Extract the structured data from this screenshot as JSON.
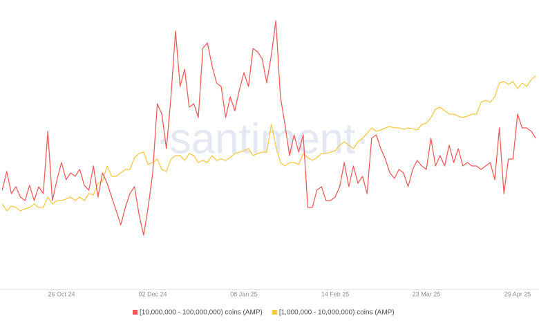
{
  "chart_data": {
    "type": "line",
    "watermark": "·santiment·",
    "categories": [
      null,
      null,
      null,
      null,
      null,
      null,
      null,
      null,
      null,
      null,
      null,
      null,
      null,
      "26 Oct 24",
      null,
      null,
      null,
      null,
      null,
      null,
      null,
      null,
      null,
      null,
      null,
      null,
      null,
      null,
      null,
      null,
      null,
      null,
      null,
      "02 Dec 24",
      null,
      null,
      null,
      null,
      null,
      null,
      null,
      null,
      null,
      null,
      null,
      null,
      null,
      null,
      null,
      null,
      null,
      null,
      null,
      "08 Jan 25",
      null,
      null,
      null,
      null,
      null,
      null,
      null,
      null,
      null,
      null,
      null,
      null,
      null,
      null,
      null,
      null,
      null,
      null,
      null,
      "14 Feb 25",
      null,
      null,
      null,
      null,
      null,
      null,
      null,
      null,
      null,
      null,
      null,
      null,
      null,
      null,
      null,
      null,
      null,
      null,
      null,
      "23 Mar 25",
      null,
      null,
      null,
      null,
      null,
      null,
      null,
      null,
      null,
      null,
      null,
      null,
      null,
      null,
      null,
      null,
      null,
      null,
      null,
      "29 Apr 25",
      null,
      null,
      null,
      null
    ],
    "series": [
      {
        "name": "[10,000,000 - 100,000,000) coins (AMP)",
        "color": "#ef5b5b",
        "values": [
          143,
          170,
          138,
          148,
          133,
          128,
          150,
          128,
          148,
          138,
          228,
          128,
          158,
          183,
          158,
          168,
          163,
          173,
          150,
          143,
          178,
          133,
          168,
          153,
          133,
          113,
          93,
          118,
          138,
          148,
          108,
          78,
          118,
          168,
          268,
          253,
          203,
          278,
          373,
          293,
          318,
          263,
          268,
          248,
          348,
          356,
          323,
          298,
          293,
          248,
          278,
          258,
          288,
          313,
          293,
          348,
          343,
          333,
          298,
          338,
          388,
          278,
          238,
          193,
          223,
          198,
          223,
          118,
          118,
          143,
          148,
          128,
          128,
          133,
          148,
          183,
          148,
          178,
          153,
          163,
          138,
          218,
          223,
          203,
          188,
          168,
          160,
          173,
          168,
          148,
          173,
          186,
          178,
          173,
          218,
          178,
          193,
          178,
          208,
          183,
          203,
          178,
          183,
          178,
          178,
          173,
          178,
          183,
          158,
          233,
          138,
          188,
          188,
          253,
          233,
          233,
          228,
          218
        ]
      },
      {
        "name": "[1,000,000 - 10,000,000) coins (AMP)",
        "color": "#f6c944",
        "values": [
          123,
          113,
          120,
          118,
          113,
          116,
          118,
          123,
          118,
          118,
          133,
          123,
          128,
          128,
          130,
          133,
          128,
          133,
          128,
          138,
          136,
          153,
          156,
          178,
          163,
          163,
          168,
          173,
          173,
          190,
          196,
          198,
          180,
          183,
          188,
          173,
          170,
          188,
          193,
          193,
          186,
          196,
          193,
          183,
          186,
          183,
          193,
          186,
          188,
          186,
          190,
          196,
          198,
          200,
          203,
          193,
          196,
          198,
          198,
          238,
          206,
          183,
          178,
          183,
          183,
          180,
          196,
          190,
          186,
          190,
          196,
          196,
          198,
          200,
          208,
          213,
          208,
          203,
          213,
          218,
          225,
          233,
          228,
          230,
          233,
          235,
          233,
          233,
          231,
          233,
          232,
          230,
          238,
          240,
          248,
          260,
          263,
          258,
          253,
          253,
          250,
          248,
          250,
          253,
          253,
          270,
          273,
          270,
          278,
          298,
          300,
          296,
          300,
          290,
          298,
          293,
          303,
          308
        ]
      }
    ],
    "ylim": [
      0,
      400
    ]
  }
}
